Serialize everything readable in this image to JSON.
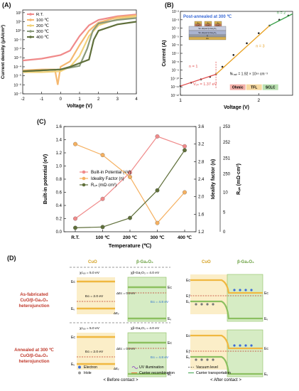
{
  "panels": {
    "a": {
      "label": "(A)"
    },
    "b": {
      "label": "(B)"
    },
    "c": {
      "label": "(C)"
    },
    "d": {
      "label": "(D)"
    }
  },
  "chart_data": [
    {
      "id": "A",
      "type": "line",
      "xlabel": "Voltage (V)",
      "ylabel": "Current density (μA/cm²)",
      "xlim": [
        -2,
        4
      ],
      "ylim_log10": [
        -7,
        2.3
      ],
      "x_ticks": [
        "-2",
        "-1",
        "0",
        "1",
        "2",
        "3",
        "4"
      ],
      "y_ticks": [
        "10²",
        "10¹",
        "10⁰",
        "10⁻¹",
        "10⁻²",
        "10⁻³",
        "10⁻⁴",
        "10⁻⁵",
        "10⁻⁶",
        "10⁻⁷"
      ],
      "y_tick_exps": [
        2,
        1,
        0,
        -1,
        -2,
        -3,
        -4,
        -5,
        -6,
        -7
      ],
      "scale": "log",
      "legend": "top-left",
      "series": [
        {
          "name": "R.T.",
          "color": "#f08a8a",
          "points": [
            [
              -2,
              -3.3
            ],
            [
              -1,
              -3.1
            ],
            [
              -0.5,
              -2.9
            ],
            [
              0,
              -2.7
            ],
            [
              0.5,
              -2.2
            ],
            [
              1,
              -0.6
            ],
            [
              1.5,
              0.6
            ],
            [
              2,
              1.2
            ],
            [
              3,
              1.6
            ],
            [
              4,
              1.8
            ]
          ]
        },
        {
          "name": "100 ℃",
          "color": "#f5b870",
          "points": [
            [
              -2,
              -4.4
            ],
            [
              -1,
              -4.3
            ],
            [
              -0.3,
              -4.3
            ],
            [
              -0.15,
              -6.0
            ],
            [
              0,
              -4.0
            ],
            [
              0.5,
              -3.4
            ],
            [
              1,
              -1.6
            ],
            [
              1.5,
              0.0
            ],
            [
              2,
              0.9
            ],
            [
              3,
              1.5
            ],
            [
              4,
              1.7
            ]
          ]
        },
        {
          "name": "200 ℃",
          "color": "#f1d27a",
          "points": [
            [
              -2,
              -4.6
            ],
            [
              -1,
              -4.6
            ],
            [
              0,
              -4.5
            ],
            [
              0.5,
              -4.0
            ],
            [
              1,
              -2.8
            ],
            [
              1.5,
              -0.6
            ],
            [
              2,
              0.6
            ],
            [
              3,
              1.3
            ],
            [
              4,
              1.6
            ]
          ]
        },
        {
          "name": "300 ℃",
          "color": "#8a9a7a",
          "points": [
            [
              -2,
              -4.5
            ],
            [
              -1,
              -4.4
            ],
            [
              0,
              -4.3
            ],
            [
              0.5,
              -4.1
            ],
            [
              1,
              -3.9
            ],
            [
              1.4,
              -2.0
            ],
            [
              1.7,
              0.0
            ],
            [
              2,
              0.8
            ],
            [
              3,
              1.2
            ],
            [
              4,
              1.4
            ]
          ]
        },
        {
          "name": "400 ℃",
          "color": "#5f6f3a",
          "points": [
            [
              -2,
              -4.5
            ],
            [
              -1,
              -4.4
            ],
            [
              0,
              -4.3
            ],
            [
              0.5,
              -4.0
            ],
            [
              1,
              -3.6
            ],
            [
              1.5,
              -3.2
            ],
            [
              1.75,
              -1.0
            ],
            [
              2,
              0.0
            ],
            [
              3,
              0.7
            ],
            [
              4,
              1.0
            ]
          ]
        }
      ]
    },
    {
      "id": "B",
      "type": "line",
      "scale": "log-log",
      "title": "Post-annealed at 300 ℃",
      "xlabel": "Voltage (V)",
      "ylabel": "Current (A)",
      "x_ticks": [
        "1",
        "2"
      ],
      "y_ticks": [
        "10⁻²",
        "10⁻³",
        "10⁻⁴",
        "10⁻⁵",
        "10⁻⁶",
        "10⁻⁷",
        "10⁻⁸",
        "10⁻⁹",
        "10⁻¹⁰",
        "10⁻¹¹",
        "10⁻¹²"
      ],
      "y_tick_exps": [
        -2,
        -3,
        -4,
        -5,
        -6,
        -7,
        -8,
        -9,
        -10,
        -11,
        -12
      ],
      "slopes": [
        "n = 1",
        "n = 3",
        "n = 2"
      ],
      "von": "Vₒₙ = 1.37 eV",
      "ntrap": "Nₜᵣₐₚ = 1.92 × 10¹⁸ cm⁻³",
      "regions": [
        "Ohmic",
        "TFL",
        "SCLC"
      ],
      "device_layers": [
        "Au",
        "Au",
        "Au",
        "CuO",
        "CuO",
        "CuO",
        "Sn-doped β-Ga₂O₃",
        "Sn-doped β-Ga₂O₃",
        "Ti",
        "Au"
      ],
      "points": [
        [
          1.0,
          -10.9
        ],
        [
          1.1,
          -10.5
        ],
        [
          1.2,
          -10.1
        ],
        [
          1.3,
          -9.8
        ],
        [
          1.37,
          -9.5
        ],
        [
          1.45,
          -8.6
        ],
        [
          1.6,
          -7.2
        ],
        [
          1.8,
          -5.8
        ],
        [
          2.0,
          -4.6
        ],
        [
          2.2,
          -3.7
        ],
        [
          2.4,
          -3.0
        ],
        [
          2.6,
          -2.5
        ]
      ]
    },
    {
      "id": "C",
      "type": "line",
      "xlabel": "Temperature (℃)",
      "ylabel_left": "Built-in potential (eV)",
      "ylabel_right": "Ideality factor (n)",
      "ylabel_right2": "Rₒₙ (mΩ·cm²)",
      "categories": [
        "R.T.",
        "100 ℃",
        "200 ℃",
        "300 ℃",
        "400 ℃"
      ],
      "yleft_lim": [
        0.0,
        1.6
      ],
      "yleft_ticks": [
        "1.6",
        "1.4",
        "1.2",
        "1.0",
        "0.8",
        "0.6",
        "0.4",
        "0.2",
        "0.0"
      ],
      "yright_lim": [
        1.2,
        3.6
      ],
      "yright_ticks": [
        "3.6",
        "3.2",
        "2.8",
        "2.4",
        "2.0",
        "1.6",
        "1.2"
      ],
      "yright2_lim": [
        0,
        253
      ],
      "yright2_ticks": [
        "253",
        "252",
        "251",
        "250",
        "10",
        "5",
        "0"
      ],
      "legend": "top-left",
      "series": [
        {
          "name": "Built-in Potential (eV)",
          "color": "#f08a8a",
          "axis": "left",
          "values": [
            0.2,
            0.5,
            0.9,
            1.45,
            1.3
          ]
        },
        {
          "name": "Ideality Factor (n)",
          "color": "#f5b060",
          "axis": "right",
          "values": [
            3.2,
            2.95,
            2.45,
            1.4,
            2.1
          ]
        },
        {
          "name": "Rₒₙ (mΩ·cm²)",
          "color": "#5f6f3a",
          "axis": "right2",
          "values": [
            1.0,
            1.2,
            3.5,
            10.5,
            251.5
          ]
        }
      ]
    }
  ],
  "diagram": {
    "rows": [
      "As-fabricated CuO/β-Ga₂O₃ heterojunction",
      "Annealed at 300 ℃ CuO/β-Ga₂O₃ heterojunction"
    ],
    "left_materials": [
      "CuO",
      "β-Ga₂O₃"
    ],
    "right_materials": [
      "CuO",
      "β-Ga₂O₃"
    ],
    "chi_cuo": "χᴄᵤₒ = 5.0 eV",
    "chi_ga2o3": "χβ-Ga₂O₃ = 4.0 eV",
    "eg_cuo": "Eɢ = 2.0 eV",
    "eg_ga2o3": "Eɢ = 4.8 eV",
    "delta_ec": "ΔEᴄ = 0.9 eV",
    "delta_ev": "ΔEᵥ",
    "labels": {
      "ec": "Eᴄ",
      "ev": "Eᵥ",
      "ef": "Eƒ",
      "ei": "Eᵢ"
    },
    "caption_before": "< Before contact >",
    "caption_after": "< After contact >",
    "legend": [
      "Electron",
      "UV illumination",
      "Vacuum level",
      "Hole",
      "Carrier recombination",
      "Carrier transportation"
    ]
  }
}
